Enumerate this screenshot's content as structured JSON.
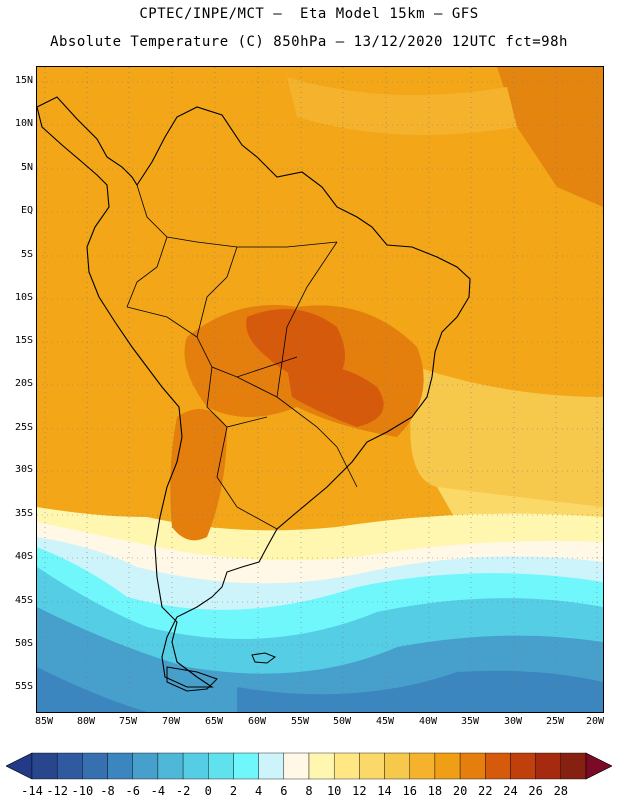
{
  "header": {
    "line1": "CPTEC/INPE/MCT –  Eta Model 15km – GFS",
    "line2": "Absolute Temperature (C) 850hPa – 13/12/2020 12UTC fct=98h"
  },
  "map": {
    "region": "South America",
    "lat_labels": [
      "15N",
      "10N",
      "5N",
      "EQ",
      "5S",
      "10S",
      "15S",
      "20S",
      "25S",
      "30S",
      "35S",
      "40S",
      "45S",
      "50S",
      "55S"
    ],
    "lon_labels": [
      "85W",
      "80W",
      "75W",
      "70W",
      "65W",
      "60W",
      "55W",
      "50W",
      "45W",
      "40W",
      "35W",
      "30W",
      "25W",
      "20W"
    ]
  },
  "colorbar": {
    "labels": [
      "-14",
      "-12",
      "-10",
      "-8",
      "-6",
      "-4",
      "-2",
      "0",
      "2",
      "4",
      "6",
      "8",
      "10",
      "12",
      "14",
      "16",
      "18",
      "20",
      "22",
      "24",
      "26",
      "28"
    ],
    "colors": [
      "#27468c",
      "#2f5aa0",
      "#3670b0",
      "#3c86bf",
      "#47a0cc",
      "#4fb8d8",
      "#55cde4",
      "#5fe2ee",
      "#6ff7fb",
      "#cdf3fb",
      "#fff8e6",
      "#fff7b0",
      "#ffe884",
      "#fbd968",
      "#f6c84c",
      "#f5b22c",
      "#f19e17",
      "#e47e0d",
      "#d65a0c",
      "#bf400d",
      "#a52a10",
      "#862112"
    ],
    "under_color": "#233a88",
    "over_color": "#7a0a25",
    "units": "C"
  }
}
